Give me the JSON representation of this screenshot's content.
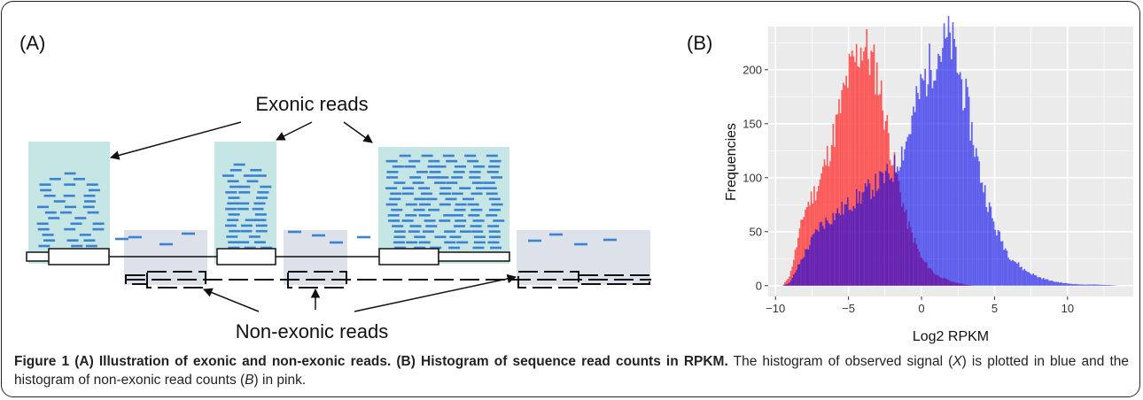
{
  "panel_a": {
    "label": "(A)",
    "exonic_label": "Exonic reads",
    "nonexonic_label": "Non-exonic reads"
  },
  "panel_b": {
    "label": "(B)"
  },
  "chart_data": {
    "type": "bar",
    "xlabel": "Log2 RPKM",
    "ylabel": "Frequencies",
    "xlim": [
      -10.5,
      14.5
    ],
    "ylim": [
      -10,
      240
    ],
    "xticks": [
      -10,
      -5,
      0,
      5,
      10
    ],
    "xtick_labels": [
      "−10",
      "−5",
      "0",
      "5",
      "10"
    ],
    "yticks": [
      0,
      50,
      100,
      150,
      200
    ],
    "ytick_labels": [
      "0",
      "50",
      "100",
      "150",
      "200"
    ],
    "grid": true,
    "background": "#ebebeb",
    "series": [
      {
        "color": "#ff4040",
        "x": [
          -9,
          -8,
          -7,
          -6,
          -5,
          -4,
          -3,
          -2,
          -1,
          0,
          1,
          2,
          3
        ],
        "values": [
          10,
          70,
          95,
          140,
          195,
          225,
          195,
          120,
          60,
          25,
          10,
          4,
          1
        ]
      },
      {
        "color": "#0000ee",
        "x": [
          -9,
          -8,
          -7,
          -6,
          -5,
          -4,
          -3,
          -2,
          -1,
          0,
          1,
          2,
          3,
          4,
          5,
          6,
          7,
          8,
          9,
          10,
          11,
          12,
          13
        ],
        "values": [
          3,
          30,
          55,
          65,
          75,
          85,
          95,
          105,
          135,
          185,
          215,
          228,
          175,
          105,
          55,
          28,
          15,
          8,
          4,
          2,
          1,
          1,
          0.5
        ]
      }
    ]
  },
  "caption": {
    "title": "Figure 1 (A) Illustration of exonic and non-exonic reads. (B) Histogram of sequence read counts in RPKM.",
    "text_1": " The histogram of observed signal (",
    "sym_x": "X",
    "text_2": ") is plotted in blue and the histogram of non-exonic read counts (",
    "sym_b": "B",
    "text_3": ") in pink."
  }
}
